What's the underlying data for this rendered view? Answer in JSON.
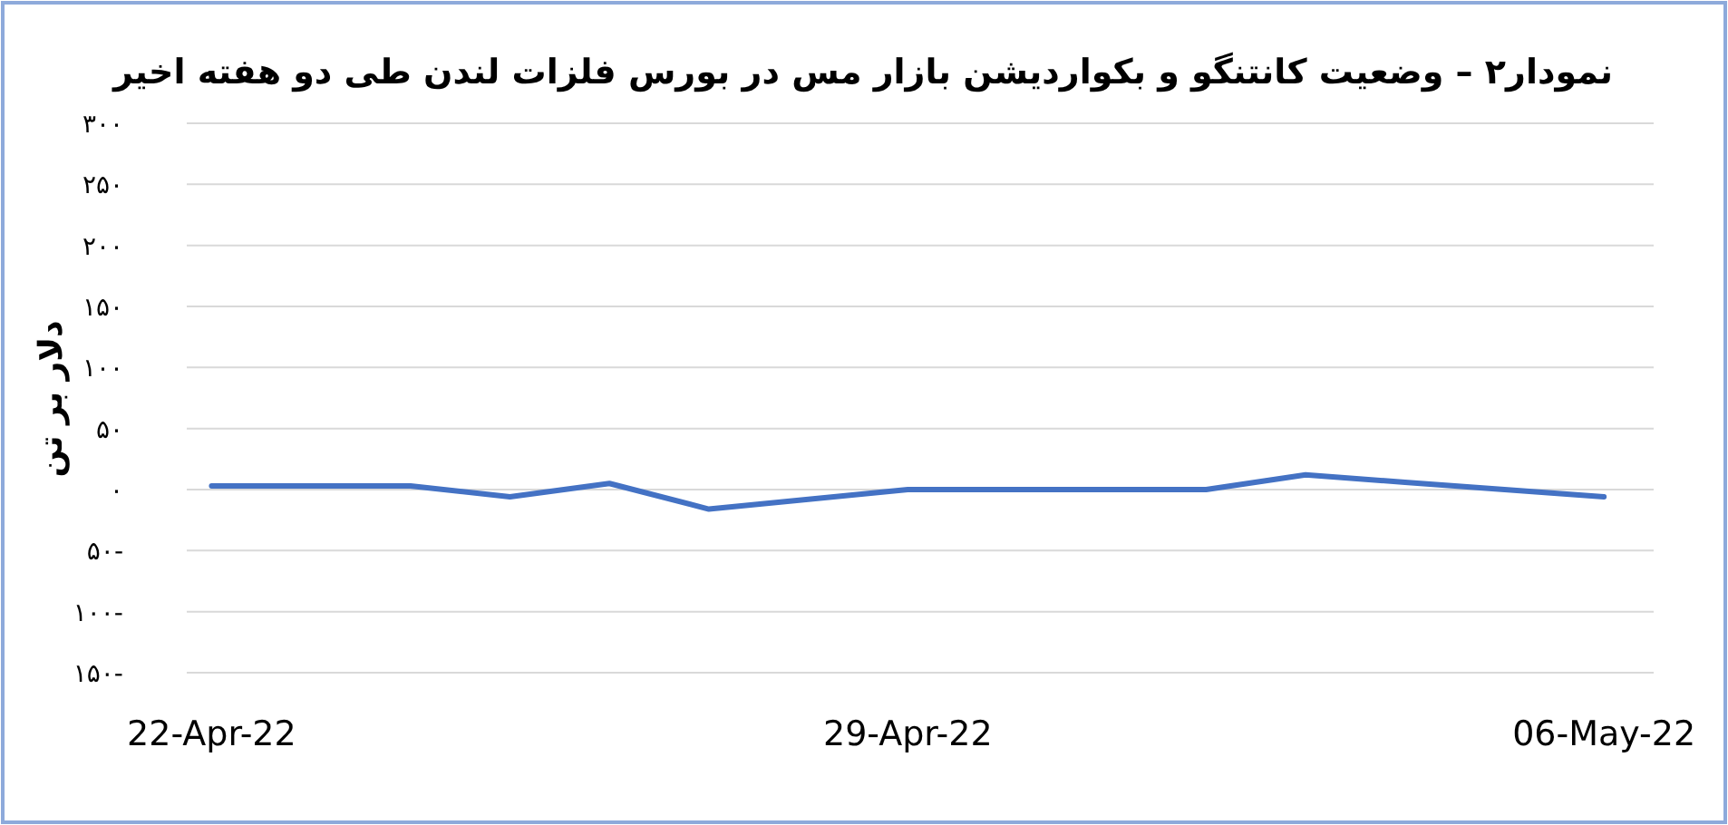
{
  "chart_data": {
    "type": "line",
    "title": "نمودار۲ – وضعیت کانتنگو و بکواردیشن بازار مس در بورس فلزات لندن طی دو هفته اخیر",
    "ylabel": "دلار بر تن",
    "x": [
      "2022-04-22",
      "2022-04-24",
      "2022-04-25",
      "2022-04-26",
      "2022-04-27",
      "2022-04-28",
      "2022-04-29",
      "2022-05-02",
      "2022-05-03",
      "2022-05-04",
      "2022-05-05",
      "2022-05-06"
    ],
    "series": [
      {
        "color": "#4472c4",
        "values": [
          3,
          3,
          -6,
          5,
          -16,
          -8,
          0,
          0,
          12,
          6,
          0,
          -6
        ]
      }
    ],
    "xlim": [
      "2022-04-21T18:00",
      "2022-05-06T12:00"
    ],
    "xticks": [
      {
        "value": "2022-04-22",
        "label": "22-Apr-22"
      },
      {
        "value": "2022-04-29",
        "label": "29-Apr-22"
      },
      {
        "value": "2022-05-06",
        "label": "06-May-22"
      }
    ],
    "ylim": [
      -150,
      300
    ],
    "yticks": [
      {
        "value": -150,
        "label": "۱۵۰-"
      },
      {
        "value": -100,
        "label": "۱۰۰-"
      },
      {
        "value": -50,
        "label": "۵۰-"
      },
      {
        "value": 0,
        "label": "۰"
      },
      {
        "value": 50,
        "label": "۵۰"
      },
      {
        "value": 100,
        "label": "۱۰۰"
      },
      {
        "value": 150,
        "label": "۱۵۰"
      },
      {
        "value": 200,
        "label": "۲۰۰"
      },
      {
        "value": 250,
        "label": "۲۵۰"
      },
      {
        "value": 300,
        "label": "۳۰۰"
      }
    ],
    "grid": "y",
    "marker": "none",
    "line_style": "solid"
  }
}
